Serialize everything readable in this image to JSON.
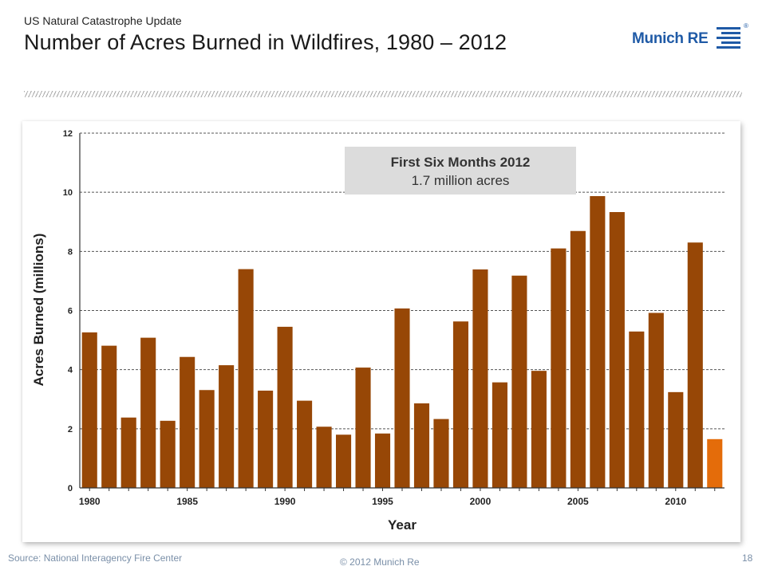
{
  "header": {
    "kicker": "US Natural Catastrophe Update",
    "title": "Number of Acres Burned in Wildfires, 1980 – 2012"
  },
  "logo": {
    "text": "Munich RE",
    "reg": "®"
  },
  "callout": {
    "title": "First Six Months 2012",
    "subtitle": "1.7 million acres"
  },
  "footer": {
    "source": "Source: National Interagency Fire Center",
    "copyright": "© 2012 Munich Re",
    "page": "18"
  },
  "colors": {
    "bar": "#974706",
    "bar_highlight": "#e46c0a",
    "brand": "#1f5aa6"
  },
  "chart_data": {
    "type": "bar",
    "xlabel": "Year",
    "ylabel": "Acres Burned (millions)",
    "ylim": [
      0,
      12
    ],
    "yticks": [
      0,
      2,
      4,
      6,
      8,
      10,
      12
    ],
    "xtick_labels": [
      "1980",
      "1985",
      "1990",
      "1995",
      "2000",
      "2005",
      "2010"
    ],
    "grid": "horizontal dashed",
    "categories": [
      "1980",
      "1981",
      "1982",
      "1983",
      "1984",
      "1985",
      "1986",
      "1987",
      "1988",
      "1989",
      "1990",
      "1991",
      "1992",
      "1993",
      "1994",
      "1995",
      "1996",
      "1997",
      "1998",
      "1999",
      "2000",
      "2001",
      "2002",
      "2003",
      "2004",
      "2005",
      "2006",
      "2007",
      "2008",
      "2009",
      "2010",
      "2011",
      "2012"
    ],
    "values": [
      5.26,
      4.81,
      2.38,
      5.08,
      2.27,
      4.43,
      3.31,
      4.15,
      7.4,
      3.29,
      5.45,
      2.95,
      2.07,
      1.8,
      4.07,
      1.84,
      6.07,
      2.86,
      2.33,
      5.63,
      7.39,
      3.57,
      7.18,
      3.96,
      8.1,
      8.69,
      9.87,
      9.33,
      5.29,
      5.92,
      3.24,
      8.3,
      1.65
    ],
    "highlight_index": 32
  }
}
